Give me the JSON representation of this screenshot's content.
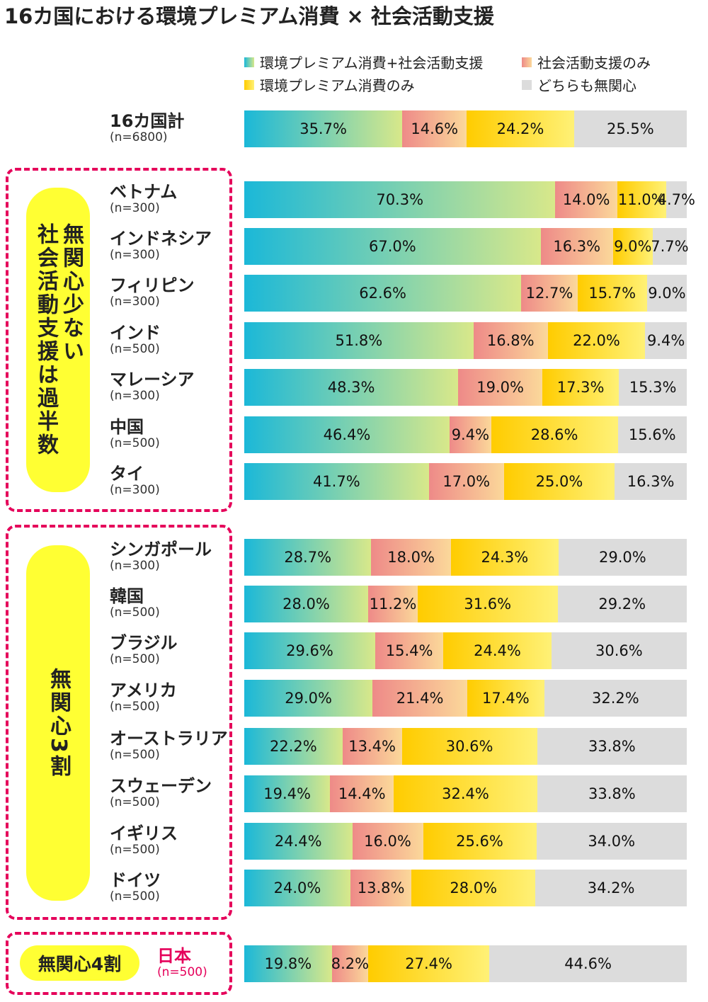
{
  "title": "16カ国における環境プレミアム消費 × 社会活動支援",
  "legend": [
    {
      "label": "環境プレミアム消費+社会活動支援",
      "color": "#1bb8d8"
    },
    {
      "label": "社会活動支援のみ",
      "color": "#ee8a88"
    },
    {
      "label": "環境プレミアム消費のみ",
      "color": "#ffcc00"
    },
    {
      "label": "どちらも無関心",
      "color": "#dcdcdc"
    }
  ],
  "groups": {
    "g1": "無関心少ない\n社会活動支援は過半数",
    "g2": "無関心3割",
    "g3": "無関心4割"
  },
  "chart_data": {
    "type": "bar",
    "orientation": "horizontal",
    "stacked": true,
    "title": "16カ国における環境プレミアム消費 × 社会活動支援",
    "unit": "%",
    "series_names": [
      "環境プレミアム消費+社会活動支援",
      "社会活動支援のみ",
      "環境プレミアム消費のみ",
      "どちらも無関心"
    ],
    "rows": [
      {
        "name": "16カ国計",
        "n": "(n=6800)",
        "values": [
          35.7,
          14.6,
          24.2,
          25.5
        ]
      },
      {
        "name": "ベトナム",
        "n": "(n=300)",
        "values": [
          70.3,
          14.0,
          11.0,
          4.7
        ]
      },
      {
        "name": "インドネシア",
        "n": "(n=300)",
        "values": [
          67.0,
          16.3,
          9.0,
          7.7
        ]
      },
      {
        "name": "フィリピン",
        "n": "(n=300)",
        "values": [
          62.6,
          12.7,
          15.7,
          9.0
        ]
      },
      {
        "name": "インド",
        "n": "(n=500)",
        "values": [
          51.8,
          16.8,
          22.0,
          9.4
        ]
      },
      {
        "name": "マレーシア",
        "n": "(n=300)",
        "values": [
          48.3,
          19.0,
          17.3,
          15.3
        ]
      },
      {
        "name": "中国",
        "n": "(n=500)",
        "values": [
          46.4,
          9.4,
          28.6,
          15.6
        ]
      },
      {
        "name": "タイ",
        "n": "(n=300)",
        "values": [
          41.7,
          17.0,
          25.0,
          16.3
        ]
      },
      {
        "name": "シンガポール",
        "n": "(n=300)",
        "values": [
          28.7,
          18.0,
          24.3,
          29.0
        ]
      },
      {
        "name": "韓国",
        "n": "(n=500)",
        "values": [
          28.0,
          11.2,
          31.6,
          29.2
        ]
      },
      {
        "name": "ブラジル",
        "n": "(n=500)",
        "values": [
          29.6,
          15.4,
          24.4,
          30.6
        ]
      },
      {
        "name": "アメリカ",
        "n": "(n=500)",
        "values": [
          29.0,
          21.4,
          17.4,
          32.2
        ]
      },
      {
        "name": "オーストラリア",
        "n": "(n=500)",
        "values": [
          22.2,
          13.4,
          30.6,
          33.8
        ]
      },
      {
        "name": "スウェーデン",
        "n": "(n=500)",
        "values": [
          19.4,
          14.4,
          32.4,
          33.8
        ]
      },
      {
        "name": "イギリス",
        "n": "(n=500)",
        "values": [
          24.4,
          16.0,
          25.6,
          34.0
        ]
      },
      {
        "name": "ドイツ",
        "n": "(n=500)",
        "values": [
          24.0,
          13.8,
          28.0,
          34.2
        ]
      },
      {
        "name": "日本",
        "n": "(n=500)",
        "values": [
          19.8,
          8.2,
          27.4,
          44.6
        ]
      }
    ]
  }
}
